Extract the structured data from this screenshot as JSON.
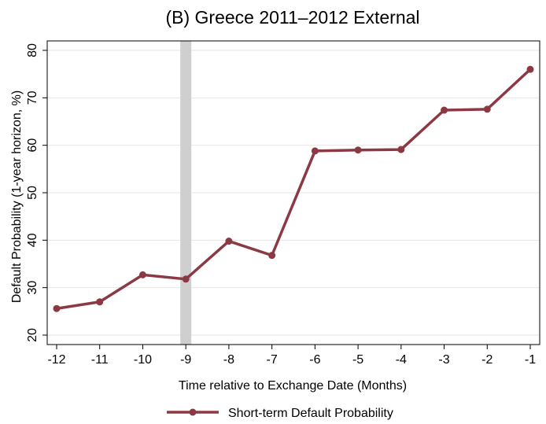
{
  "chart_data": {
    "type": "line",
    "title": "(B) Greece 2011–2012 External",
    "xlabel": "Time relative to Exchange Date (Months)",
    "ylabel": "Default Probability (1-year horizon, %)",
    "xlim": [
      -12,
      -1
    ],
    "ylim": [
      20,
      80
    ],
    "x_ticks": [
      -12,
      -11,
      -10,
      -9,
      -8,
      -7,
      -6,
      -5,
      -4,
      -3,
      -2,
      -1
    ],
    "y_ticks": [
      20,
      30,
      40,
      50,
      60,
      70,
      80
    ],
    "grid": true,
    "legend": "bottom",
    "highlight_band": {
      "x": -9
    },
    "colors": {
      "series": "#8b3a44",
      "band": "#cfcfcf",
      "grid": "#e6e6e6"
    },
    "series": [
      {
        "name": "Short-term Default Probability",
        "x": [
          -12,
          -11,
          -10,
          -9,
          -8,
          -7,
          -6,
          -5,
          -4,
          -3,
          -2,
          -1
        ],
        "values": [
          25.6,
          27.0,
          32.7,
          31.8,
          39.8,
          36.8,
          58.8,
          59.0,
          59.1,
          67.4,
          67.6,
          76.0
        ]
      }
    ]
  }
}
